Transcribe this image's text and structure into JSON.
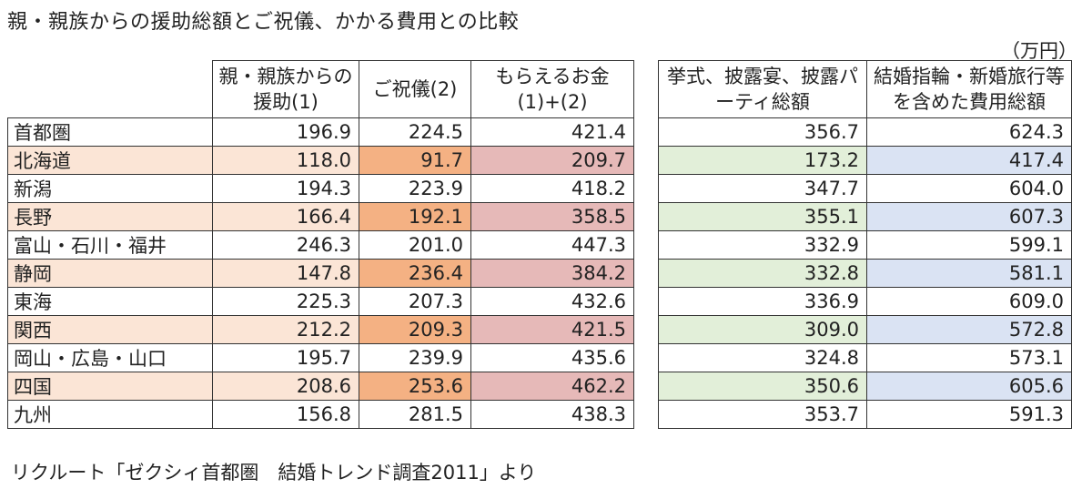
{
  "title": "親・親族からの援助総額とご祝儀、かかる費用との比較",
  "unit": "（万円）",
  "source": "リクルート「ゼクシィ首都圏　結婚トレンド調査2011」より",
  "colors": {
    "highlight_light_orange": "#fbe5d6",
    "highlight_orange": "#f4b183",
    "highlight_pink": "#e6b9b8",
    "highlight_green": "#e2efd9",
    "highlight_blue": "#dae3f3"
  },
  "left_table": {
    "headers": [
      "親・親族からの援助(1)",
      "ご祝儀(2)",
      "もらえるお金 (1)+(2)"
    ]
  },
  "right_table": {
    "headers": [
      "挙式、披露宴、披露パーティ総額",
      "結婚指輪・新婚旅行等を含めた費用総額"
    ]
  },
  "rows": [
    {
      "region": "首都圏",
      "aid": "196.9",
      "gift": "224.5",
      "total": "421.4",
      "ceremony": "356.7",
      "allcost": "624.3"
    },
    {
      "region": "北海道",
      "aid": "118.0",
      "gift": "91.7",
      "total": "209.7",
      "ceremony": "173.2",
      "allcost": "417.4"
    },
    {
      "region": "新潟",
      "aid": "194.3",
      "gift": "223.9",
      "total": "418.2",
      "ceremony": "347.7",
      "allcost": "604.0"
    },
    {
      "region": "長野",
      "aid": "166.4",
      "gift": "192.1",
      "total": "358.5",
      "ceremony": "355.1",
      "allcost": "607.3"
    },
    {
      "region": "富山・石川・福井",
      "aid": "246.3",
      "gift": "201.0",
      "total": "447.3",
      "ceremony": "332.9",
      "allcost": "599.1"
    },
    {
      "region": "静岡",
      "aid": "147.8",
      "gift": "236.4",
      "total": "384.2",
      "ceremony": "332.8",
      "allcost": "581.1"
    },
    {
      "region": "東海",
      "aid": "225.3",
      "gift": "207.3",
      "total": "432.6",
      "ceremony": "336.9",
      "allcost": "609.0"
    },
    {
      "region": "関西",
      "aid": "212.2",
      "gift": "209.3",
      "total": "421.5",
      "ceremony": "309.0",
      "allcost": "572.8"
    },
    {
      "region": "岡山・広島・山口",
      "aid": "195.7",
      "gift": "239.9",
      "total": "435.6",
      "ceremony": "324.8",
      "allcost": "573.1"
    },
    {
      "region": "四国",
      "aid": "208.6",
      "gift": "253.6",
      "total": "462.2",
      "ceremony": "350.6",
      "allcost": "605.6"
    },
    {
      "region": "九州",
      "aid": "156.8",
      "gift": "281.5",
      "total": "438.3",
      "ceremony": "353.7",
      "allcost": "591.3"
    }
  ]
}
